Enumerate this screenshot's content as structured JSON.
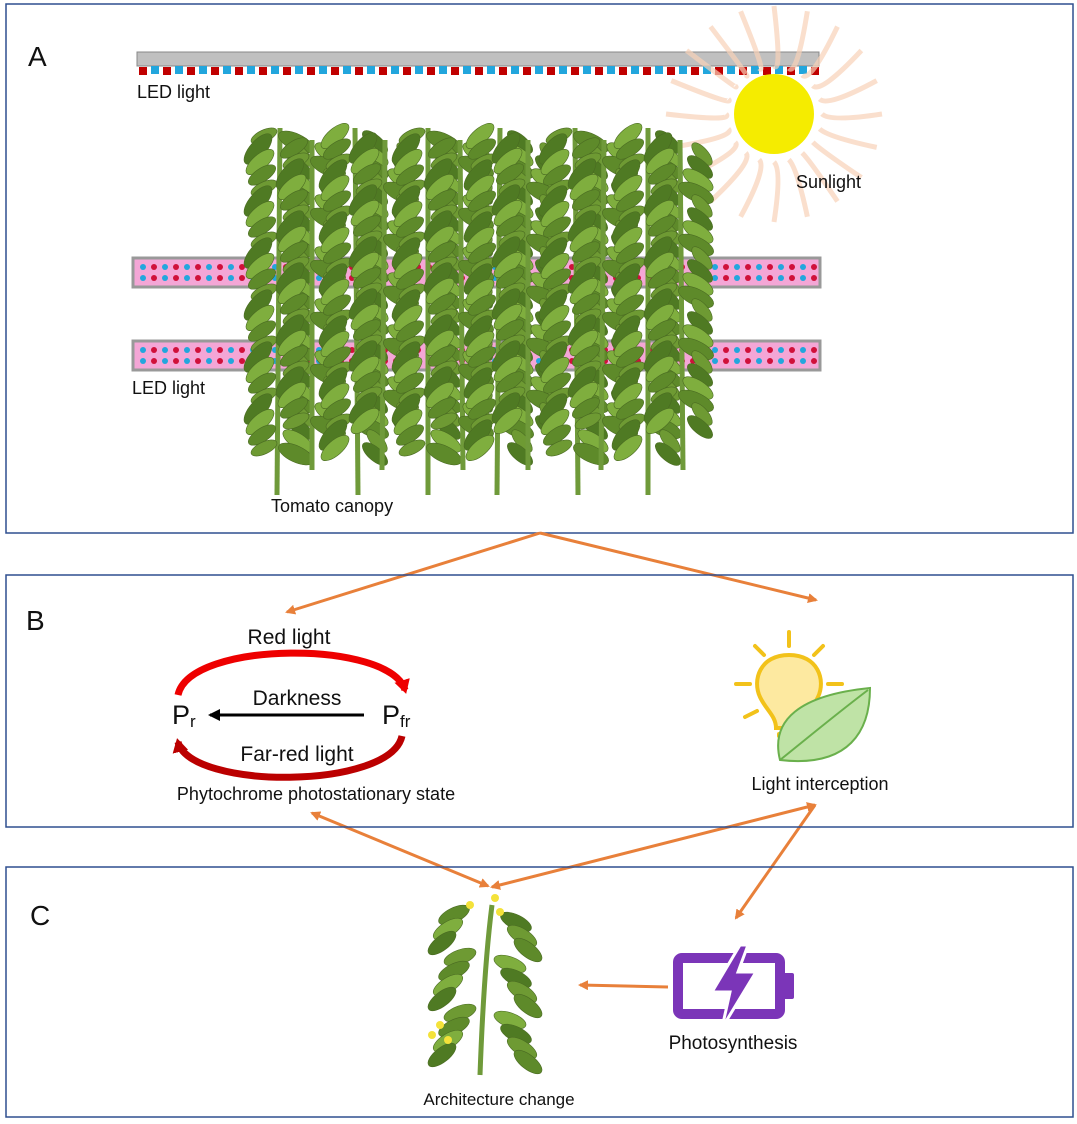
{
  "panels": {
    "a": {
      "label": "A",
      "top_light": "LED light",
      "sun": "Sunlight",
      "inter_light": "LED light",
      "canopy": "Tomato canopy"
    },
    "b": {
      "label": "B",
      "red": "Red light",
      "dark": "Darkness",
      "farred": "Far-red light",
      "pr": {
        "symbol": "P",
        "subscript": "r"
      },
      "pfr": {
        "symbol": "P",
        "subscript": "fr"
      },
      "pss": "Phytochrome photostationary state",
      "interception": "Light interception"
    },
    "c": {
      "label": "C",
      "architecture": "Architecture change",
      "photosynthesis": "Photosynthesis"
    }
  }
}
